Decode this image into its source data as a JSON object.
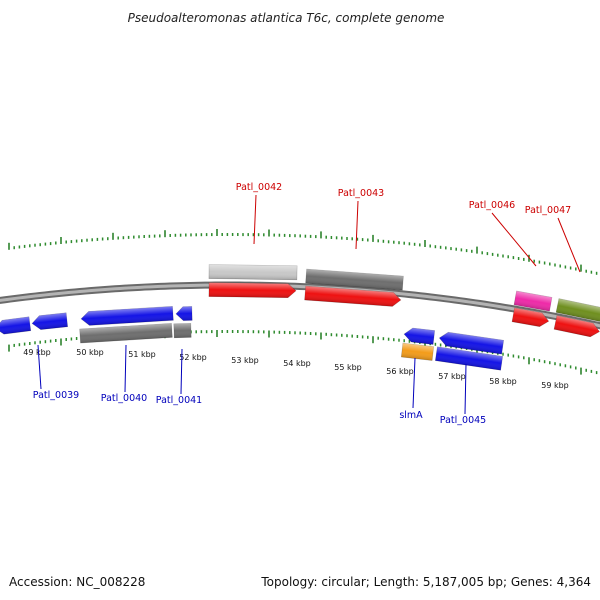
{
  "title": "Pseudoalteromonas atlantica T6c, complete genome",
  "footer": {
    "accession": "Accession: NC_008228",
    "topology": "Topology: circular; Length: 5,187,005 bp; Genes: 4,364"
  },
  "colors": {
    "backbone": "#8a8a8a",
    "tick_minor": "#2e8b2e",
    "tick_major": "#1f7a1f",
    "label_top": "#cc0000",
    "label_bottom": "#0000bb"
  },
  "scale_labels": [
    "49 kbp",
    "50 kbp",
    "51 kbp",
    "52 kbp",
    "53 kbp",
    "54 kbp",
    "55 kbp",
    "56 kbp",
    "57 kbp",
    "58 kbp",
    "59 kbp"
  ],
  "top_labels": [
    "Patl_0042",
    "Patl_0043",
    "Patl_0046",
    "Patl_0047"
  ],
  "bottom_labels": [
    "Patl_0039",
    "Patl_0040",
    "Patl_0041",
    "slmA",
    "Patl_0045"
  ],
  "features": [
    {
      "name": "gene-blue-left-a",
      "kind": "arrow-left",
      "color": "#1414e6"
    },
    {
      "name": "gene-blue-left-b",
      "kind": "arrow-left",
      "color": "#1414e6"
    },
    {
      "name": "gene-patl0040-cds",
      "kind": "arrow-left",
      "color": "#1414e6"
    },
    {
      "name": "gene-patl0041-cds",
      "kind": "arrow-left",
      "color": "#1414e6"
    },
    {
      "name": "gene-patl0040-gene",
      "kind": "box",
      "color": "#6e6e6e"
    },
    {
      "name": "gene-patl0041-gene",
      "kind": "box",
      "color": "#6e6e6e"
    },
    {
      "name": "gene-patl0042-gene",
      "kind": "box",
      "color": "#c8c8c8"
    },
    {
      "name": "gene-patl0042-cds",
      "kind": "arrow-right",
      "color": "#ee1111"
    },
    {
      "name": "gene-patl0043-gene",
      "kind": "box",
      "color": "#6e6e6e"
    },
    {
      "name": "gene-patl0043-cds",
      "kind": "arrow-right",
      "color": "#ee1111"
    },
    {
      "name": "gene-slma-cds",
      "kind": "arrow-left",
      "color": "#1414e6"
    },
    {
      "name": "gene-slma-gene",
      "kind": "box",
      "color": "#f39c1a"
    },
    {
      "name": "gene-patl0045-cds",
      "kind": "arrow-left",
      "color": "#1414e6"
    },
    {
      "name": "gene-patl0045-gene",
      "kind": "box",
      "color": "#1414e6"
    },
    {
      "name": "gene-patl0046-gene",
      "kind": "box",
      "color": "#ee2aa8"
    },
    {
      "name": "gene-patl0046-cds",
      "kind": "arrow-right",
      "color": "#ee1111"
    },
    {
      "name": "gene-patl0047-gene",
      "kind": "box",
      "color": "#6f8f1f"
    },
    {
      "name": "gene-patl0047-cds",
      "kind": "arrow-right",
      "color": "#ee1111"
    }
  ]
}
